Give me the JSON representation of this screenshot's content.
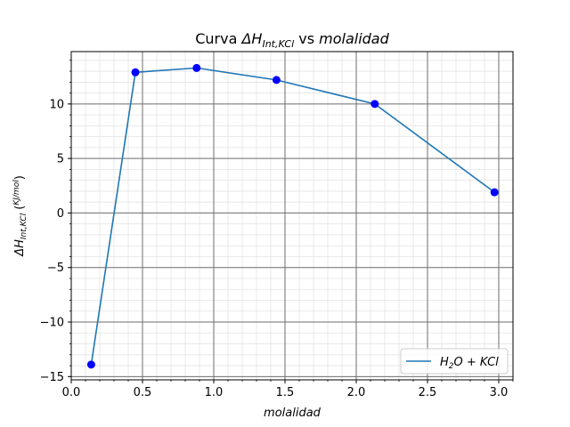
{
  "chart_data": {
    "type": "line",
    "title_parts": {
      "prefix": "Curva ",
      "math": "ΔH",
      "sub": "Int,KCl",
      "suffix_plain": " vs ",
      "suffix_italic": "molalidad"
    },
    "xlabel": "molalidad",
    "ylabel_parts": {
      "math": "ΔH",
      "sub": "Int,KCl",
      "unit_num": "KJ",
      "unit_den": "mol"
    },
    "xlim": [
      0.0,
      3.1
    ],
    "ylim": [
      -15.3,
      14.8
    ],
    "x_ticks": [
      0.0,
      0.5,
      1.0,
      1.5,
      2.0,
      2.5,
      3.0
    ],
    "x_tick_labels": [
      "0.0",
      "0.5",
      "1.0",
      "1.5",
      "2.0",
      "2.5",
      "3.0"
    ],
    "y_ticks": [
      -15,
      -10,
      -5,
      0,
      5,
      10
    ],
    "y_tick_labels": [
      "−15",
      "−10",
      "−5",
      "0",
      "5",
      "10"
    ],
    "grid": true,
    "minor_grid": true,
    "legend_position": "lower-right",
    "series": [
      {
        "name": "H₂O + KCl",
        "name_parts": {
          "a": "H",
          "a_sub": "2",
          "b": "O + KCl"
        },
        "color": "#1f77b4",
        "marker_color": "#0000ff",
        "x": [
          0.14,
          0.45,
          0.88,
          1.44,
          2.13,
          2.97
        ],
        "y": [
          -13.9,
          12.9,
          13.3,
          12.2,
          10.0,
          1.9
        ]
      }
    ]
  }
}
